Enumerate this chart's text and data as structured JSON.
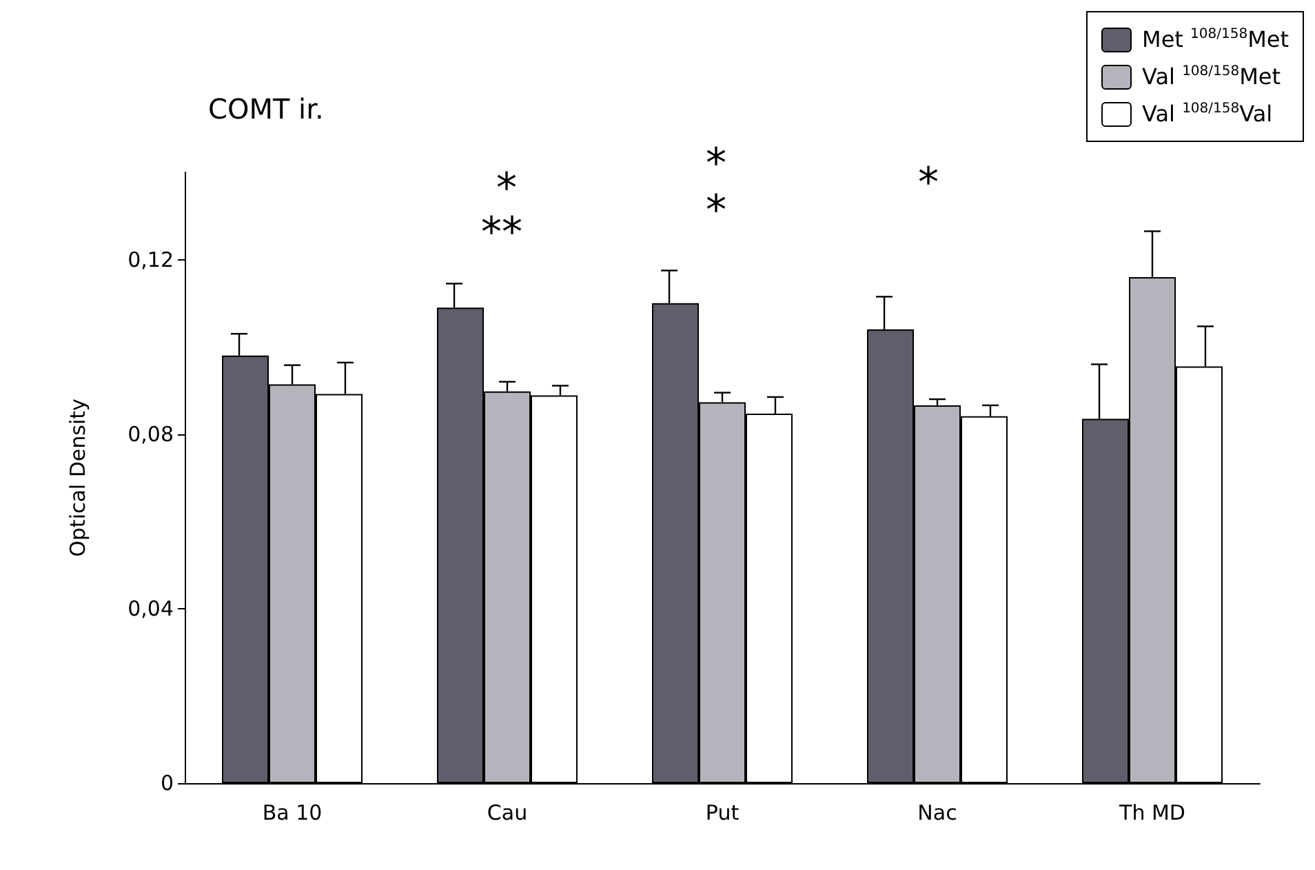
{
  "chart_data": {
    "type": "bar",
    "title": "COMT ir.",
    "ylabel": "Optical Density",
    "categories": [
      "Ba 10",
      "Cau",
      "Put",
      "Nac",
      "Th MD"
    ],
    "series": [
      {
        "name": "Met $^{108/158}$Met",
        "color": "#5f5f6b",
        "values": [
          0.098,
          0.109,
          0.11,
          0.104,
          0.0835
        ],
        "errors": [
          [
            0.098,
            0.103
          ],
          [
            0.109,
            0.1145
          ],
          [
            0.11,
            0.1175
          ],
          [
            0.104,
            0.1115
          ],
          [
            0.0835,
            0.096
          ]
        ]
      },
      {
        "name": "Val $^{108/158}$Met",
        "color": "#b4b4bc",
        "values": [
          0.0914,
          0.0898,
          0.0873,
          0.0866,
          0.116
        ],
        "errors": [
          [
            0.0914,
            0.0958
          ],
          [
            0.0898,
            0.092
          ],
          [
            0.0873,
            0.0895
          ],
          [
            0.0866,
            0.088
          ],
          [
            0.116,
            0.1265
          ]
        ]
      },
      {
        "name": "Val $^{108/158}$Val",
        "color": "#ffffff",
        "values": [
          0.0892,
          0.0889,
          0.0847,
          0.0841,
          0.0955
        ],
        "errors": [
          [
            0.0892,
            0.0964
          ],
          [
            0.0889,
            0.0911
          ],
          [
            0.0847,
            0.0885
          ],
          [
            0.0841,
            0.0866
          ],
          [
            0.0955,
            0.1047
          ]
        ]
      }
    ],
    "ylim": [
      0,
      0.14
    ],
    "yticks": [
      {
        "value": 0,
        "label": "0"
      },
      {
        "value": 0.04,
        "label": "0,04"
      },
      {
        "value": 0.08,
        "label": "0,08"
      },
      {
        "value": 0.12,
        "label": "0,12"
      }
    ],
    "annotations": [
      "**",
      "*",
      "*",
      "*",
      "*"
    ],
    "grid": false,
    "legend": "top right"
  }
}
